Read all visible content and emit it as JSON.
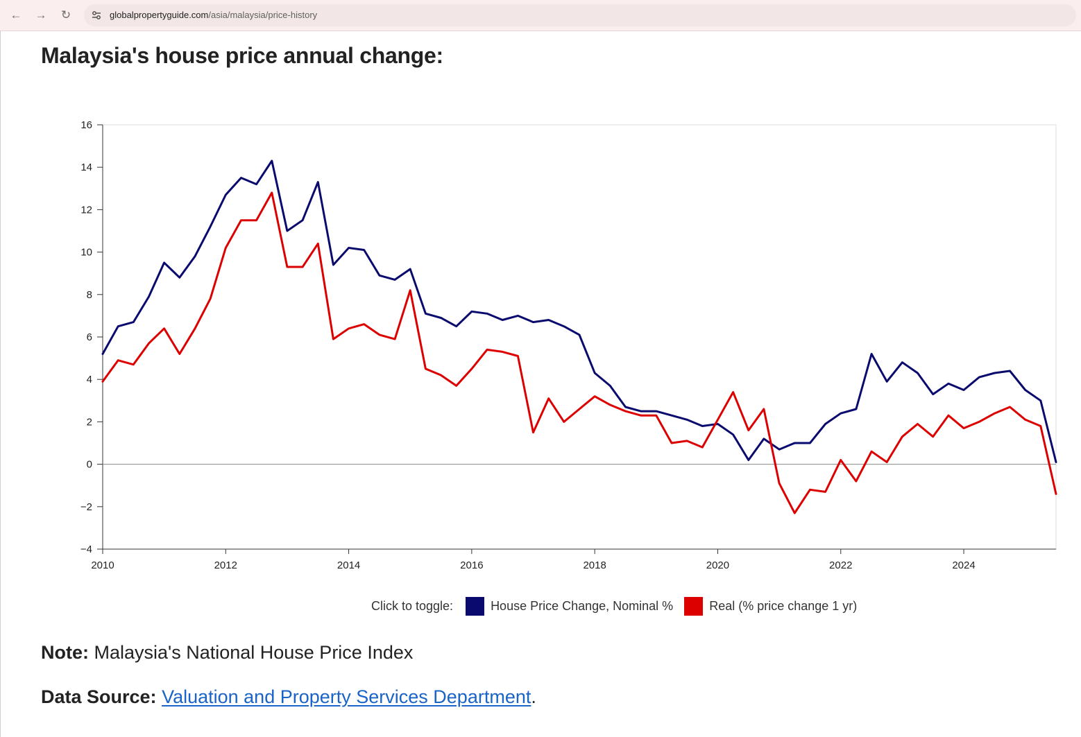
{
  "browser": {
    "url_host": "globalpropertyguide.com",
    "url_path": "/asia/malaysia/price-history"
  },
  "page": {
    "title": "Malaysia's house price annual change:",
    "legend_prefix": "Click to toggle:",
    "note_label": "Note:",
    "note_text": " Malaysia's National House Price Index",
    "source_label": "Data Source:",
    "source_link": "Valuation and Property Services Department",
    "source_end": "."
  },
  "chart_data": {
    "type": "line",
    "title": "",
    "xlabel": "",
    "ylabel": "",
    "xlim": [
      2010,
      2025.5
    ],
    "ylim": [
      -4,
      16
    ],
    "yticks": [
      -4,
      -2,
      0,
      2,
      4,
      6,
      8,
      10,
      12,
      14,
      16
    ],
    "xticks": [
      2010,
      2012,
      2014,
      2016,
      2018,
      2020,
      2022,
      2024
    ],
    "x": [
      2010.0,
      2010.25,
      2010.5,
      2010.75,
      2011.0,
      2011.25,
      2011.5,
      2011.75,
      2012.0,
      2012.25,
      2012.5,
      2012.75,
      2013.0,
      2013.25,
      2013.5,
      2013.75,
      2014.0,
      2014.25,
      2014.5,
      2014.75,
      2015.0,
      2015.25,
      2015.5,
      2015.75,
      2016.0,
      2016.25,
      2016.5,
      2016.75,
      2017.0,
      2017.25,
      2017.5,
      2017.75,
      2018.0,
      2018.25,
      2018.5,
      2018.75,
      2019.0,
      2019.25,
      2019.5,
      2019.75,
      2020.0,
      2020.25,
      2020.5,
      2020.75,
      2021.0,
      2021.25,
      2021.5,
      2021.75,
      2022.0,
      2022.25,
      2022.5,
      2022.75,
      2023.0,
      2023.25,
      2023.5,
      2023.75,
      2024.0,
      2024.25,
      2024.5,
      2024.75,
      2025.0,
      2025.25,
      2025.5
    ],
    "series": [
      {
        "name": "House Price Change, Nominal %",
        "color": "#0a0a6e",
        "values": [
          5.2,
          6.5,
          6.7,
          7.9,
          9.5,
          8.8,
          9.8,
          11.2,
          12.7,
          13.5,
          13.2,
          14.3,
          11.0,
          11.5,
          13.3,
          9.4,
          10.2,
          10.1,
          8.9,
          8.7,
          9.2,
          7.1,
          6.9,
          6.5,
          7.2,
          7.1,
          6.8,
          7.0,
          6.7,
          6.8,
          6.5,
          6.1,
          4.3,
          3.7,
          2.7,
          2.5,
          2.5,
          2.3,
          2.1,
          1.8,
          1.9,
          1.4,
          0.2,
          1.2,
          0.7,
          1.0,
          1.0,
          1.9,
          2.4,
          2.6,
          5.2,
          3.9,
          4.8,
          4.3,
          3.3,
          3.8,
          3.5,
          4.1,
          4.3,
          4.4,
          3.5,
          3.0,
          0.1
        ]
      },
      {
        "name": "Real (% price change 1 yr)",
        "color": "#dd0000",
        "values": [
          3.9,
          4.9,
          4.7,
          5.7,
          6.4,
          5.2,
          6.4,
          7.8,
          10.2,
          11.5,
          11.5,
          12.8,
          9.3,
          9.3,
          10.4,
          5.9,
          6.4,
          6.6,
          6.1,
          5.9,
          8.2,
          4.5,
          4.2,
          3.7,
          4.5,
          5.4,
          5.3,
          5.1,
          1.5,
          3.1,
          2.0,
          2.6,
          3.2,
          2.8,
          2.5,
          2.3,
          2.3,
          1.0,
          1.1,
          0.8,
          2.1,
          3.4,
          1.6,
          2.6,
          -0.9,
          -2.3,
          -1.2,
          -1.3,
          0.2,
          -0.8,
          0.6,
          0.1,
          1.3,
          1.9,
          1.3,
          2.3,
          1.7,
          2.0,
          2.4,
          2.7,
          2.1,
          1.8,
          -1.4
        ]
      }
    ],
    "grid": false,
    "zero_line": true,
    "legend_position": "bottom-center"
  }
}
